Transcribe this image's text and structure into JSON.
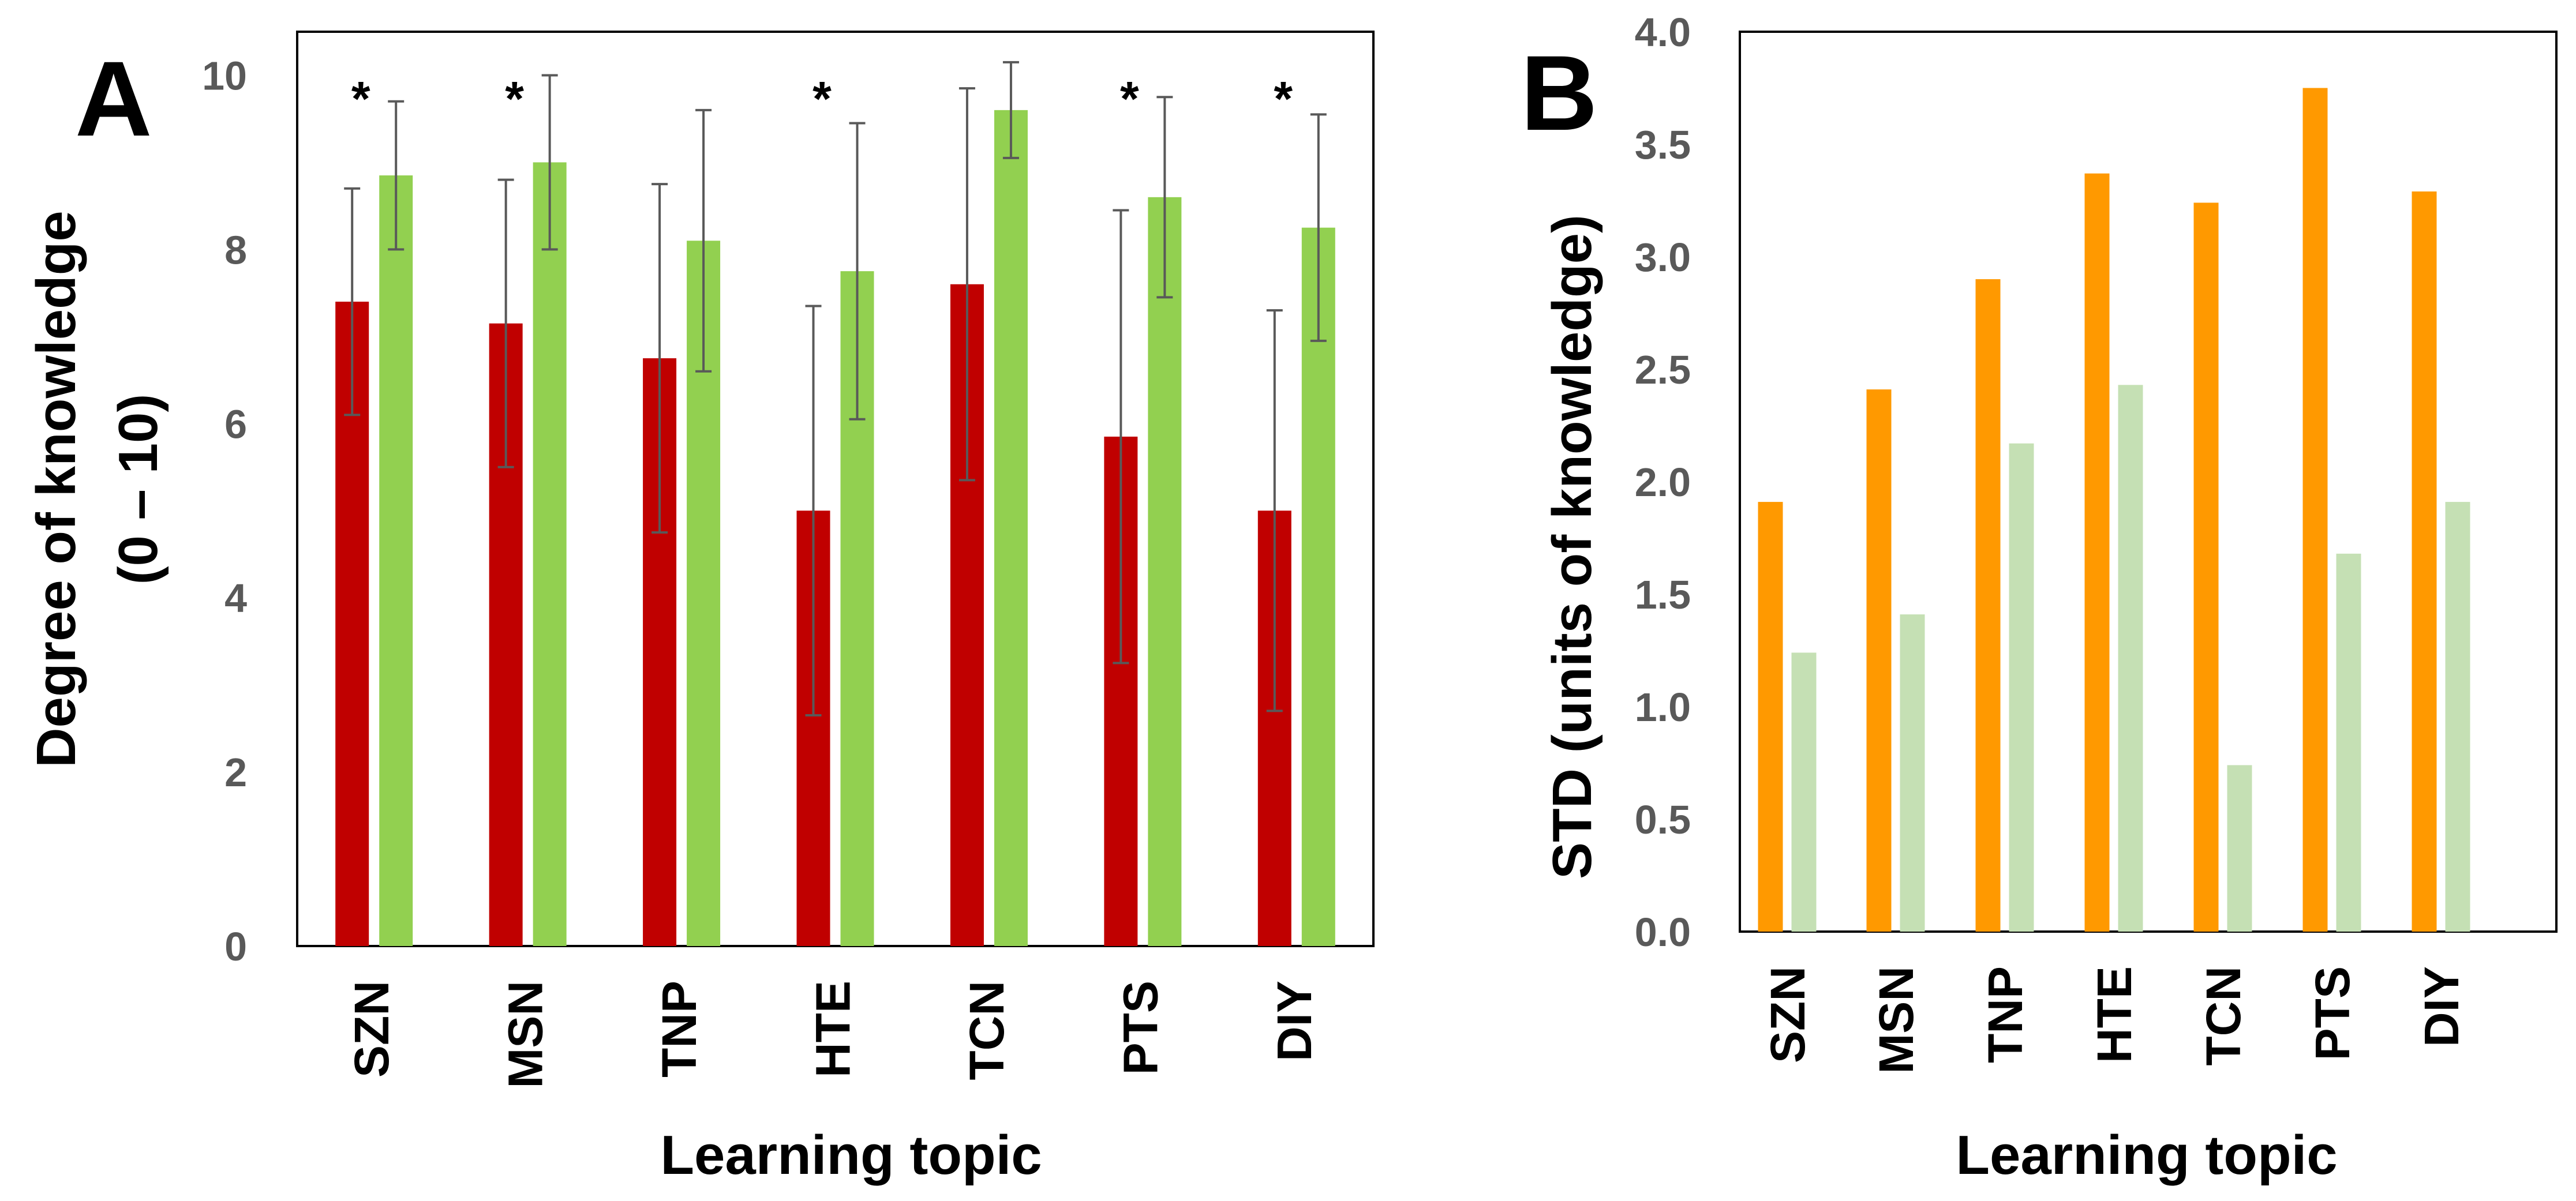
{
  "chart_data": [
    {
      "panel": "A",
      "type": "bar",
      "panel_label": "A",
      "categories": [
        "SZN",
        "MSN",
        "TNP",
        "HTE",
        "TCN",
        "PTS",
        "DIY"
      ],
      "series": [
        {
          "values": [
            7.4,
            7.15,
            6.75,
            5.0,
            7.6,
            5.85,
            5.0
          ],
          "errors": [
            1.3,
            1.65,
            2.0,
            2.35,
            2.25,
            2.6,
            2.3
          ],
          "color": "#c00000"
        },
        {
          "values": [
            8.85,
            9.0,
            8.1,
            7.75,
            9.6,
            8.6,
            8.25
          ],
          "errors": [
            0.85,
            1.0,
            1.5,
            1.7,
            0.55,
            1.15,
            1.3
          ],
          "color": "#92d050"
        }
      ],
      "significance": [
        true,
        true,
        false,
        true,
        false,
        true,
        true
      ],
      "significance_marker": "*",
      "xlabel": "Learning topic",
      "ylabel": [
        "Degree of knowledge",
        "(0 – 10)"
      ],
      "ylim": [
        0,
        10.5
      ],
      "yticks": [
        "0",
        "2",
        "4",
        "6",
        "8",
        "10"
      ],
      "grid": false
    },
    {
      "panel": "B",
      "type": "bar",
      "panel_label": "B",
      "categories": [
        "SZN",
        "MSN",
        "TNP",
        "HTE",
        "TCN",
        "PTS",
        "DIY"
      ],
      "series": [
        {
          "values": [
            1.91,
            2.41,
            2.9,
            3.37,
            3.24,
            3.75,
            3.29
          ],
          "color": "#ff9900"
        },
        {
          "values": [
            1.24,
            1.41,
            2.17,
            2.43,
            0.74,
            1.68,
            1.91
          ],
          "color": "#c5e0b4"
        }
      ],
      "xlabel": "Learning topic",
      "ylabel": "STD (units of knowledge)",
      "ylim": [
        0,
        4.0
      ],
      "yticks": [
        "0.0",
        "0.5",
        "1.0",
        "1.5",
        "2.0",
        "2.5",
        "3.0",
        "3.5",
        "4.0"
      ],
      "grid": false
    }
  ]
}
